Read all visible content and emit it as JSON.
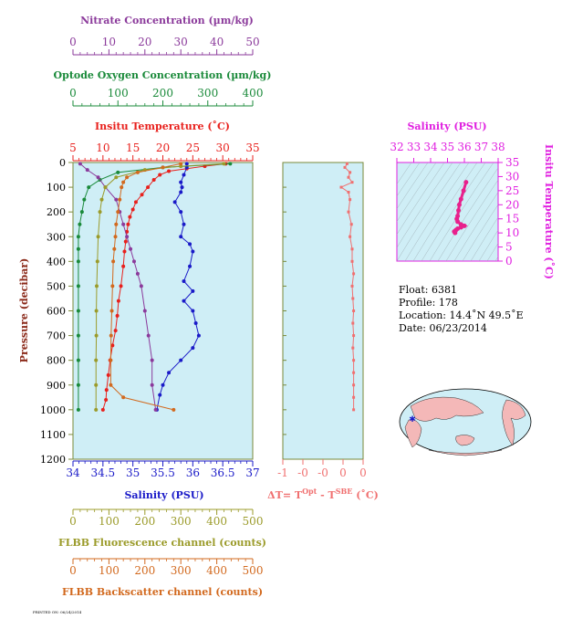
{
  "header_axes": {
    "nitrate": {
      "label": "Nitrate Concentration (µm/kg)",
      "ticks": [
        "0",
        "10",
        "20",
        "30",
        "40",
        "50"
      ],
      "range": [
        0,
        50
      ],
      "color": "#8b3a9b"
    },
    "oxygen": {
      "label": "Optode Oxygen Concentration (µm/kg)",
      "ticks": [
        "0",
        "100",
        "200",
        "300",
        "400"
      ],
      "range": [
        0,
        400
      ],
      "color": "#1a8a3a"
    },
    "temperature": {
      "label": "Insitu Temperature (˚C)",
      "ticks": [
        "5",
        "10",
        "15",
        "20",
        "25",
        "30",
        "35"
      ],
      "range": [
        5,
        35
      ],
      "color": "#e8201c"
    }
  },
  "footer_axes": {
    "salinity": {
      "label": "Salinity (PSU)",
      "ticks": [
        "34",
        "34.5",
        "35",
        "35.5",
        "36",
        "36.5",
        "37"
      ],
      "range": [
        34,
        37
      ],
      "color": "#1a1ac8"
    },
    "fluorescence": {
      "label": "FLBB Fluorescence channel (counts)",
      "ticks": [
        "0",
        "100",
        "200",
        "300",
        "400",
        "500"
      ],
      "range": [
        0,
        500
      ],
      "color": "#9b9b2a"
    },
    "backscatter": {
      "label": "FLBB Backscatter channel (counts)",
      "ticks": [
        "0",
        "100",
        "200",
        "300",
        "400",
        "500"
      ],
      "range": [
        0,
        500
      ],
      "color": "#d2691e"
    }
  },
  "pressure_axis": {
    "label": "Pressure (decibar)",
    "ticks": [
      "0",
      "100",
      "200",
      "300",
      "400",
      "500",
      "600",
      "700",
      "800",
      "900",
      "1000",
      "1100",
      "1200"
    ],
    "range": [
      0,
      1200
    ]
  },
  "delta_axis": {
    "label_main": "ΔT= T",
    "label_sup1": "Opt",
    "label_mid": " - T",
    "label_sup2": "SBE",
    "label_unit": " (˚C)",
    "ticks": [
      "-1",
      "-0",
      "-0",
      "0",
      "0"
    ],
    "range": [
      -1,
      0.1
    ],
    "color": "#f07070"
  },
  "ts_axes": {
    "title": "Salinity (PSU)",
    "xticks": [
      "32",
      "33",
      "34",
      "35",
      "36",
      "37",
      "38"
    ],
    "xrange": [
      32,
      38
    ],
    "ylabel": "Insitu Temperature (˚C)",
    "yticks": [
      "0",
      "5",
      "10",
      "15",
      "20",
      "25",
      "30",
      "35"
    ],
    "yrange": [
      0,
      35
    ],
    "color": "#e020e0"
  },
  "float_info": {
    "float": "Float:  6381",
    "profile": "Profile:  178",
    "location": "Location:  14.4˚N  49.5˚E",
    "date": "Date:  06/23/2014"
  },
  "footnote": "PRINTED ON: 06/24/2014",
  "chart_data": [
    {
      "type": "line",
      "title": "",
      "xlabel": "Salinity (PSU) / Insitu Temperature / Nitrate / Oxygen / FLBB",
      "ylabel": "Pressure (decibar)",
      "ylim": [
        1200,
        0
      ],
      "grid": false,
      "series": [
        {
          "name": "Insitu Temperature",
          "color": "#e8201c",
          "xrange": [
            5,
            35
          ],
          "points": [
            [
              30.5,
              5
            ],
            [
              27,
              15
            ],
            [
              24,
              25
            ],
            [
              21,
              35
            ],
            [
              19.5,
              50
            ],
            [
              18.5,
              70
            ],
            [
              17.5,
              100
            ],
            [
              16.5,
              130
            ],
            [
              15.5,
              160
            ],
            [
              15,
              190
            ],
            [
              14.5,
              220
            ],
            [
              14.2,
              250
            ],
            [
              14,
              280
            ],
            [
              13.8,
              320
            ],
            [
              13.6,
              360
            ],
            [
              13.4,
              420
            ],
            [
              13,
              500
            ],
            [
              12.6,
              560
            ],
            [
              12.4,
              620
            ],
            [
              12.1,
              680
            ],
            [
              11.6,
              740
            ],
            [
              11.2,
              800
            ],
            [
              10.9,
              860
            ],
            [
              10.6,
              920
            ],
            [
              10.5,
              960
            ],
            [
              10,
              1000
            ]
          ]
        },
        {
          "name": "Salinity",
          "color": "#1a1ac8",
          "xrange": [
            34,
            37
          ],
          "points": [
            [
              35.9,
              5
            ],
            [
              35.9,
              20
            ],
            [
              35.85,
              50
            ],
            [
              35.8,
              80
            ],
            [
              35.82,
              100
            ],
            [
              35.8,
              120
            ],
            [
              35.7,
              160
            ],
            [
              35.8,
              200
            ],
            [
              35.85,
              250
            ],
            [
              35.8,
              300
            ],
            [
              35.95,
              330
            ],
            [
              36.0,
              360
            ],
            [
              35.95,
              420
            ],
            [
              35.85,
              480
            ],
            [
              36.0,
              520
            ],
            [
              35.85,
              560
            ],
            [
              36.0,
              600
            ],
            [
              36.05,
              650
            ],
            [
              36.1,
              700
            ],
            [
              36.0,
              750
            ],
            [
              35.8,
              800
            ],
            [
              35.6,
              850
            ],
            [
              35.5,
              900
            ],
            [
              35.45,
              940
            ],
            [
              35.4,
              1000
            ]
          ]
        },
        {
          "name": "Oxygen",
          "color": "#1a8a3a",
          "xrange": [
            0,
            400
          ],
          "points": [
            [
              350,
              5
            ],
            [
              200,
              20
            ],
            [
              100,
              40
            ],
            [
              60,
              70
            ],
            [
              35,
              100
            ],
            [
              25,
              150
            ],
            [
              20,
              200
            ],
            [
              15,
              250
            ],
            [
              12,
              300
            ],
            [
              12,
              350
            ],
            [
              12,
              400
            ],
            [
              12,
              500
            ],
            [
              12,
              600
            ],
            [
              12,
              700
            ],
            [
              12,
              800
            ],
            [
              12,
              900
            ],
            [
              12,
              1000
            ]
          ]
        },
        {
          "name": "Nitrate",
          "color": "#8b3a9b",
          "xrange": [
            0,
            50
          ],
          "points": [
            [
              2,
              5
            ],
            [
              4,
              30
            ],
            [
              7,
              60
            ],
            [
              9,
              100
            ],
            [
              12,
              150
            ],
            [
              13,
              200
            ],
            [
              14,
              250
            ],
            [
              15,
              300
            ],
            [
              16,
              350
            ],
            [
              17,
              400
            ],
            [
              18,
              450
            ],
            [
              19,
              500
            ],
            [
              20,
              600
            ],
            [
              21,
              700
            ],
            [
              22,
              800
            ],
            [
              22,
              900
            ],
            [
              23,
              1000
            ]
          ]
        },
        {
          "name": "FLBB Fluorescence",
          "color": "#9b9b2a",
          "xrange": [
            0,
            500
          ],
          "points": [
            [
              420,
              5
            ],
            [
              300,
              15
            ],
            [
              200,
              30
            ],
            [
              120,
              60
            ],
            [
              90,
              100
            ],
            [
              80,
              150
            ],
            [
              75,
              200
            ],
            [
              70,
              300
            ],
            [
              68,
              400
            ],
            [
              66,
              500
            ],
            [
              65,
              600
            ],
            [
              65,
              700
            ],
            [
              64,
              800
            ],
            [
              64,
              900
            ],
            [
              64,
              1000
            ]
          ]
        },
        {
          "name": "FLBB Backscatter",
          "color": "#d2691e",
          "xrange": [
            0,
            500
          ],
          "points": [
            [
              300,
              5
            ],
            [
              250,
              20
            ],
            [
              180,
              40
            ],
            [
              150,
              60
            ],
            [
              140,
              80
            ],
            [
              135,
              100
            ],
            [
              130,
              150
            ],
            [
              125,
              200
            ],
            [
              120,
              250
            ],
            [
              118,
              300
            ],
            [
              115,
              350
            ],
            [
              112,
              400
            ],
            [
              110,
              500
            ],
            [
              108,
              600
            ],
            [
              106,
              700
            ],
            [
              105,
              800
            ],
            [
              105,
              900
            ],
            [
              140,
              950
            ],
            [
              280,
              1000
            ]
          ]
        }
      ]
    },
    {
      "type": "line",
      "title": "",
      "xlabel": "ΔT = T(Opt) - T(SBE) (˚C)",
      "ylim": [
        1200,
        0
      ],
      "series": [
        {
          "name": "ΔT",
          "color": "#f07070",
          "points": [
            [
              -0.12,
              5
            ],
            [
              -0.15,
              20
            ],
            [
              -0.08,
              40
            ],
            [
              -0.1,
              60
            ],
            [
              -0.05,
              80
            ],
            [
              -0.2,
              100
            ],
            [
              -0.1,
              120
            ],
            [
              -0.08,
              150
            ],
            [
              -0.1,
              200
            ],
            [
              -0.06,
              250
            ],
            [
              -0.08,
              300
            ],
            [
              -0.05,
              350
            ],
            [
              -0.05,
              400
            ],
            [
              -0.03,
              450
            ],
            [
              -0.05,
              500
            ],
            [
              -0.04,
              550
            ],
            [
              -0.03,
              600
            ],
            [
              -0.04,
              650
            ],
            [
              -0.03,
              700
            ],
            [
              -0.04,
              750
            ],
            [
              -0.03,
              800
            ],
            [
              -0.03,
              850
            ],
            [
              -0.03,
              900
            ],
            [
              -0.03,
              950
            ],
            [
              -0.03,
              1000
            ]
          ]
        }
      ]
    },
    {
      "type": "scatter",
      "title": "Salinity (PSU)",
      "xlabel": "Salinity (PSU)",
      "ylabel": "Insitu Temperature (˚C)",
      "xlim": [
        32,
        38
      ],
      "ylim": [
        0,
        35
      ],
      "series": [
        {
          "name": "T-S profile",
          "color": "#e8208c",
          "points": [
            [
              36.1,
              28
            ],
            [
              35.95,
              25
            ],
            [
              35.8,
              22
            ],
            [
              35.7,
              20
            ],
            [
              35.65,
              18
            ],
            [
              35.6,
              16
            ],
            [
              35.55,
              15
            ],
            [
              35.6,
              14
            ],
            [
              35.8,
              13
            ],
            [
              36.0,
              12.5
            ],
            [
              35.8,
              12
            ],
            [
              35.6,
              11.5
            ],
            [
              35.5,
              11
            ],
            [
              35.4,
              10.5
            ],
            [
              35.45,
              10
            ]
          ]
        }
      ]
    }
  ]
}
